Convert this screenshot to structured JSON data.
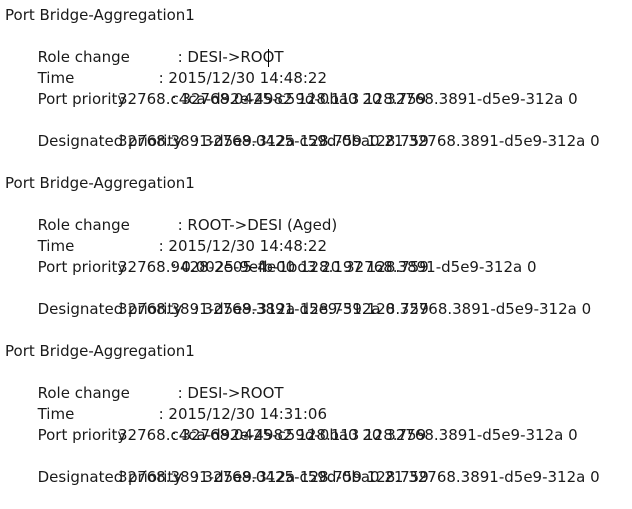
{
  "colors": {
    "background": "#ffffff",
    "text": "#1a1a1a",
    "cursor": "#000000"
  },
  "cursor": {
    "visible": true,
    "location_note": "text caret shown inside first block time value at 14:48:22"
  },
  "blocks": [
    {
      "port": "Port Bridge-Aggregation1",
      "role_change": {
        "label": "Role change",
        "value": ": DESI->ROOT"
      },
      "time": {
        "label": "Time",
        "value": ": 2015/12/30 14:48:22"
      },
      "port_priority": {
        "label": "Port priority",
        "value": ": 32768.0425-c59d-0ba0 20 32768.3891-d5e9-312a 0",
        "value_cont": "32768.c4ca-d92e-4982 128.113 128.759"
      },
      "designated_priority": {
        "label": "Designated priority",
        "value": ": 32768.0425-c59d-0ba0 21 32768.3891-d5e9-312a 0",
        "value_cont": "32768.3891-d5e9-312a 128.759 128.759"
      }
    },
    {
      "port": "Port Bridge-Aggregation1",
      "role_change": {
        "label": "Role change",
        "value": ": ROOT->DESI (Aged)"
      },
      "time": {
        "label": "Time",
        "value": ": 2015/12/30 14:48:22"
      },
      "port_priority": {
        "label": "Port priority",
        "value": ": 0.0025-9efb-1bd3 20 32768.3891-d5e9-312a 0",
        "value_cont": "32768.9428-2e05-4e00 128.197 128.759"
      },
      "designated_priority": {
        "label": "Designated priority",
        "value": ": 32768.3891-d5e9-312a 0 32768.3891-d5e9-312a 0",
        "value_cont": "32768.3891-d5e9-312a 128.759 128.759"
      }
    },
    {
      "port": "Port Bridge-Aggregation1",
      "role_change": {
        "label": "Role change",
        "value": ": DESI->ROOT"
      },
      "time": {
        "label": "Time",
        "value": ": 2015/12/30 14:31:06"
      },
      "port_priority": {
        "label": "Port priority",
        "value": ": 32768.0425-c59d-0ba0 20 32768.3891-d5e9-312a 0",
        "value_cont": "32768.c4ca-d92e-4982 128.113 128.759"
      },
      "designated_priority": {
        "label": "Designated priority",
        "value": ": 32768.0425-c59d-0ba0 21 32768.3891-d5e9-312a 0",
        "value_cont": "32768.3891-d5e9-312a 128.759 128.759"
      }
    }
  ]
}
